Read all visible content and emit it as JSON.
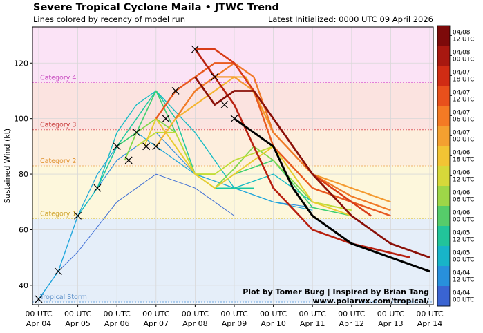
{
  "header": {
    "title": "Severe Tropical Cyclone Maila • JTWC Trend",
    "subtitle": "Lines colored by recency of model run",
    "latest": "Latest Initialized: 0000 UTC 09 April 2026"
  },
  "credits": {
    "line1": "Plot by Tomer Burg | Inspired by Brian Tang",
    "line2": "www.polarwx.com/tropical/"
  },
  "chart_data": {
    "type": "line",
    "ylabel": "Sustained Wind (kt)",
    "ylim": [
      33,
      133
    ],
    "xlim": [
      0,
      10
    ],
    "yticks": [
      40,
      60,
      80,
      100,
      120
    ],
    "xticks": [
      {
        "x": 0,
        "line1": "00 UTC",
        "line2": "Apr 04"
      },
      {
        "x": 1,
        "line1": "00 UTC",
        "line2": "Apr 05"
      },
      {
        "x": 2,
        "line1": "00 UTC",
        "line2": "Apr 06"
      },
      {
        "x": 3,
        "line1": "00 UTC",
        "line2": "Apr 07"
      },
      {
        "x": 4,
        "line1": "00 UTC",
        "line2": "Apr 08"
      },
      {
        "x": 5,
        "line1": "00 UTC",
        "line2": "Apr 09"
      },
      {
        "x": 6,
        "line1": "00 UTC",
        "line2": "Apr 10"
      },
      {
        "x": 7,
        "line1": "00 UTC",
        "line2": "Apr 11"
      },
      {
        "x": 8,
        "line1": "00 UTC",
        "line2": "Apr 12"
      },
      {
        "x": 9,
        "line1": "00 UTC",
        "line2": "Apr 13"
      },
      {
        "x": 10,
        "line1": "00 UTC",
        "line2": "Apr 14"
      }
    ],
    "categories": [
      {
        "label": "Tropical Storm",
        "from": 34,
        "to": 64,
        "color": "#e5eef9",
        "line": "#6ca6e0",
        "text": "#5b8fc9"
      },
      {
        "label": "Category 1",
        "from": 64,
        "to": 83,
        "color": "#fdf7dc",
        "line": "#e8d36a",
        "text": "#cfa42e"
      },
      {
        "label": "Category 2",
        "from": 83,
        "to": 96,
        "color": "#fdeedd",
        "line": "#f0b46a",
        "text": "#e0922e"
      },
      {
        "label": "Category 3",
        "from": 96,
        "to": 113,
        "color": "#fbe3e0",
        "line": "#e06060",
        "text": "#c83a3a"
      },
      {
        "label": "Category 4",
        "from": 113,
        "to": 137,
        "color": "#fbe3f6",
        "line": "#e070d8",
        "text": "#c84ac0"
      }
    ],
    "series": [
      {
        "color": "#3f6fd6",
        "points": [
          [
            0,
            35
          ],
          [
            0.5,
            45
          ],
          [
            1,
            52
          ],
          [
            2,
            70
          ],
          [
            3,
            80
          ],
          [
            4,
            75
          ],
          [
            5,
            65
          ]
        ]
      },
      {
        "color": "#2f8fe0",
        "points": [
          [
            0,
            35
          ],
          [
            0.5,
            45
          ],
          [
            1,
            65
          ],
          [
            1.5,
            75
          ],
          [
            2,
            85
          ],
          [
            3,
            95
          ],
          [
            4,
            80
          ],
          [
            5,
            75
          ],
          [
            6,
            70
          ],
          [
            7,
            68
          ]
        ]
      },
      {
        "color": "#1ea8dc",
        "points": [
          [
            0,
            35
          ],
          [
            0.5,
            45
          ],
          [
            1,
            65
          ],
          [
            1.5,
            80
          ],
          [
            2,
            90
          ],
          [
            2.5,
            95
          ],
          [
            3,
            90
          ],
          [
            3.5,
            85
          ],
          [
            4,
            80
          ],
          [
            5,
            75
          ],
          [
            6,
            70
          ],
          [
            7,
            67
          ]
        ]
      },
      {
        "color": "#14bcc4",
        "points": [
          [
            1,
            65
          ],
          [
            1.5,
            75
          ],
          [
            2,
            95
          ],
          [
            2.5,
            105
          ],
          [
            3,
            110
          ],
          [
            4,
            95
          ],
          [
            5,
            75
          ],
          [
            6,
            80
          ],
          [
            7,
            70
          ]
        ]
      },
      {
        "color": "#1ac8a0",
        "points": [
          [
            1.5,
            75
          ],
          [
            2,
            90
          ],
          [
            2.5,
            100
          ],
          [
            3,
            110
          ],
          [
            3.5,
            100
          ],
          [
            4,
            80
          ],
          [
            4.5,
            75
          ],
          [
            5,
            75
          ],
          [
            5.5,
            75
          ]
        ]
      },
      {
        "color": "#3cd070",
        "points": [
          [
            2,
            90
          ],
          [
            2.5,
            95
          ],
          [
            3,
            110
          ],
          [
            3.5,
            95
          ],
          [
            4,
            80
          ],
          [
            4.5,
            75
          ],
          [
            5,
            80
          ],
          [
            6,
            85
          ],
          [
            7,
            68
          ],
          [
            8,
            65
          ]
        ]
      },
      {
        "color": "#7ed848",
        "points": [
          [
            2.2,
            85
          ],
          [
            2.5,
            95
          ],
          [
            3,
            100
          ],
          [
            3.5,
            95
          ],
          [
            4,
            80
          ],
          [
            4.5,
            75
          ],
          [
            5,
            82
          ],
          [
            5.5,
            90
          ],
          [
            6,
            85
          ],
          [
            7,
            70
          ],
          [
            8,
            67
          ]
        ]
      },
      {
        "color": "#c0dc38",
        "points": [
          [
            2.5,
            90
          ],
          [
            3,
            95
          ],
          [
            3.5,
            95
          ],
          [
            4,
            80
          ],
          [
            4.5,
            80
          ],
          [
            5,
            85
          ],
          [
            6,
            90
          ],
          [
            7,
            70
          ],
          [
            8,
            67
          ]
        ]
      },
      {
        "color": "#e8cc30",
        "points": [
          [
            2.7,
            90
          ],
          [
            3,
            100
          ],
          [
            3.5,
            90
          ],
          [
            4,
            80
          ],
          [
            4.5,
            75
          ],
          [
            5,
            80
          ],
          [
            6,
            90
          ],
          [
            7,
            70
          ],
          [
            8,
            65
          ]
        ]
      },
      {
        "color": "#f4b430",
        "points": [
          [
            3,
            90
          ],
          [
            3.5,
            100
          ],
          [
            4,
            105
          ],
          [
            4.5,
            110
          ],
          [
            5,
            115
          ],
          [
            5.3,
            115
          ],
          [
            6,
            95
          ],
          [
            7,
            80
          ],
          [
            8,
            70
          ],
          [
            8.5,
            65
          ]
        ]
      },
      {
        "color": "#f49a30",
        "points": [
          [
            3.5,
            100
          ],
          [
            4,
            110
          ],
          [
            4.5,
            115
          ],
          [
            5,
            115
          ],
          [
            5.5,
            110
          ],
          [
            6,
            95
          ],
          [
            7,
            80
          ],
          [
            8,
            75
          ],
          [
            9,
            70
          ]
        ]
      },
      {
        "color": "#f07a28",
        "points": [
          [
            3.5,
            100
          ],
          [
            4,
            110
          ],
          [
            4.5,
            115
          ],
          [
            5,
            120
          ],
          [
            5.5,
            115
          ],
          [
            6,
            95
          ],
          [
            7,
            80
          ],
          [
            8,
            72
          ],
          [
            9,
            67
          ]
        ]
      },
      {
        "color": "#e85a20",
        "points": [
          [
            3,
            100
          ],
          [
            3.5,
            110
          ],
          [
            4,
            115
          ],
          [
            4.5,
            120
          ],
          [
            5,
            120
          ],
          [
            5.5,
            110
          ],
          [
            6,
            90
          ],
          [
            7,
            75
          ],
          [
            8,
            70
          ],
          [
            9,
            65
          ]
        ]
      },
      {
        "color": "#d83c18",
        "points": [
          [
            4,
            125
          ],
          [
            4.5,
            125
          ],
          [
            5,
            120
          ],
          [
            5.5,
            110
          ],
          [
            6,
            100
          ],
          [
            7,
            80
          ],
          [
            8,
            70
          ],
          [
            8.5,
            65
          ]
        ]
      },
      {
        "color": "#b82010",
        "points": [
          [
            4,
            125
          ],
          [
            4.5,
            115
          ],
          [
            5,
            105
          ],
          [
            5.5,
            90
          ],
          [
            6,
            75
          ],
          [
            7,
            60
          ],
          [
            8,
            55
          ],
          [
            9.5,
            50
          ]
        ]
      },
      {
        "color": "#8a1008",
        "points": [
          [
            4,
            115
          ],
          [
            4.5,
            105
          ],
          [
            5,
            110
          ],
          [
            5.5,
            110
          ],
          [
            6,
            100
          ],
          [
            7,
            80
          ],
          [
            8,
            65
          ],
          [
            9,
            55
          ],
          [
            10,
            50
          ]
        ]
      }
    ],
    "best_track": {
      "color": "#000000",
      "points": [
        [
          5,
          100
        ],
        [
          5.5,
          95
        ],
        [
          6,
          90
        ],
        [
          6.5,
          75
        ],
        [
          7,
          65
        ],
        [
          8,
          55
        ],
        [
          9,
          50
        ],
        [
          10,
          45
        ]
      ]
    },
    "markers": [
      [
        0,
        35
      ],
      [
        0.5,
        45
      ],
      [
        1,
        65
      ],
      [
        1.5,
        75
      ],
      [
        2,
        90
      ],
      [
        2.3,
        85
      ],
      [
        2.5,
        95
      ],
      [
        2.75,
        90
      ],
      [
        3,
        90
      ],
      [
        3.25,
        100
      ],
      [
        3.5,
        110
      ],
      [
        4,
        125
      ],
      [
        4.5,
        115
      ],
      [
        4.75,
        105
      ],
      [
        5,
        100
      ]
    ],
    "colorbar": {
      "ticks": [
        "04/08 12 UTC",
        "04/08 00 UTC",
        "04/07 18 UTC",
        "04/07 12 UTC",
        "04/07 06 UTC",
        "04/07 00 UTC",
        "04/06 18 UTC",
        "04/06 12 UTC",
        "04/06 06 UTC",
        "04/06 00 UTC",
        "04/05 12 UTC",
        "04/05 00 UTC",
        "04/04 12 UTC",
        "04/04 00 UTC"
      ],
      "colors": [
        "#7d0a0a",
        "#a81810",
        "#d02c14",
        "#e8501c",
        "#f47a24",
        "#f4a030",
        "#f2c434",
        "#d6d83a",
        "#9ed648",
        "#56cc6a",
        "#22c49a",
        "#18b4c8",
        "#2890dc",
        "#3a64d2"
      ]
    }
  }
}
